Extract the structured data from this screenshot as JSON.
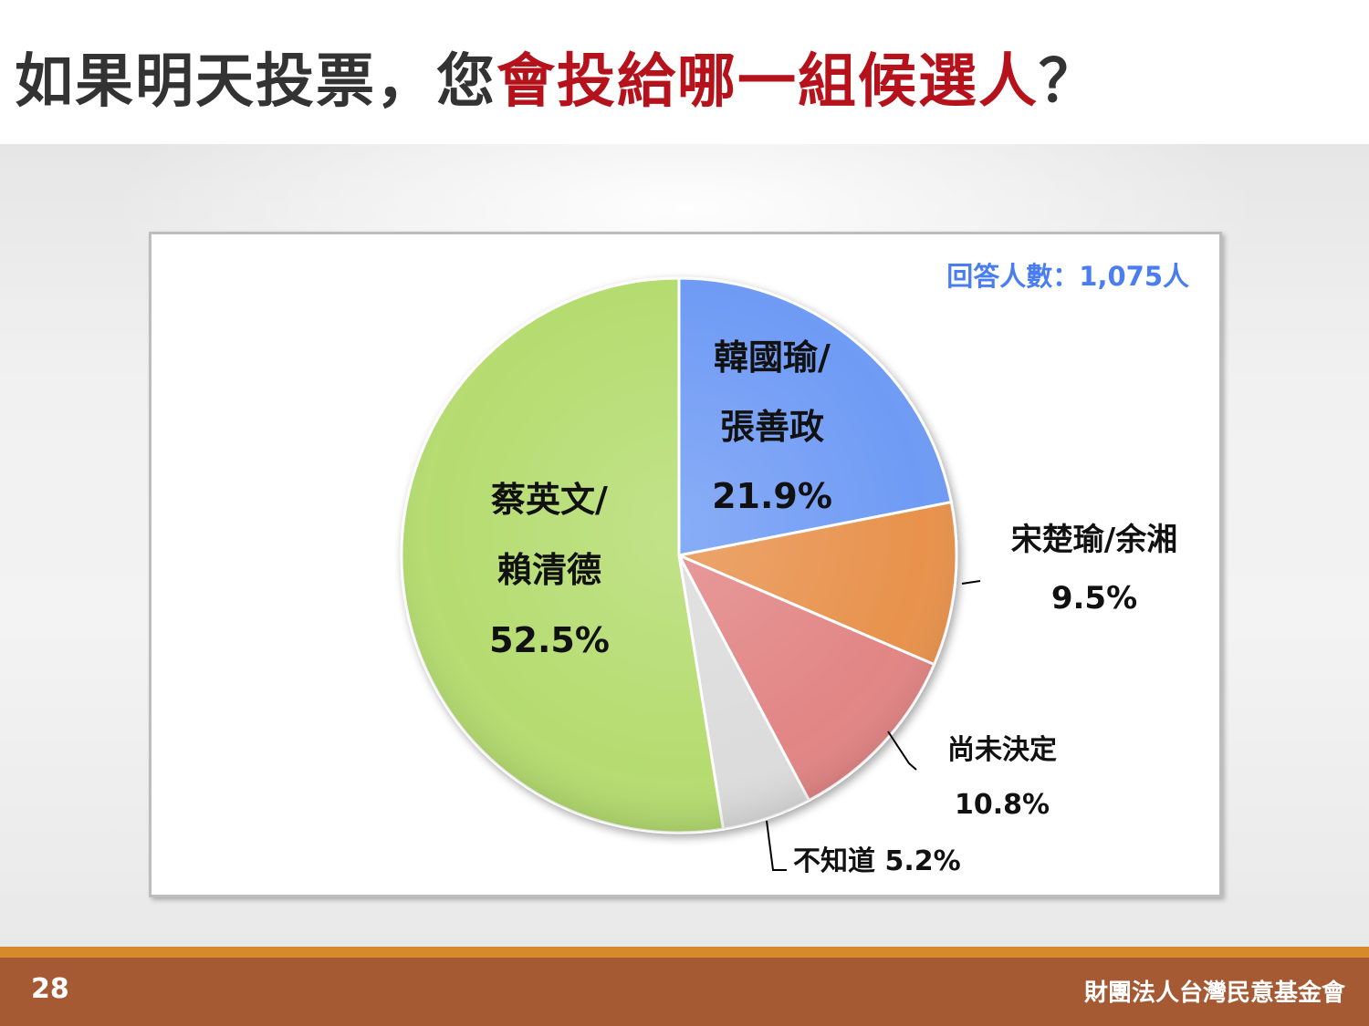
{
  "title": {
    "prefix": "如果明天投票，您",
    "highlight": "會投給哪一組候選人",
    "suffix": "？"
  },
  "footer": {
    "page_number": "28",
    "organization": "財團法人台灣民意基金會"
  },
  "chart_data": {
    "type": "pie",
    "note": "回答人數：1,075人",
    "slices": [
      {
        "label_lines": [
          "韓國瑜/",
          "張善政"
        ],
        "value": 21.9,
        "value_label": "21.9%",
        "color": "#6f9bf5"
      },
      {
        "label_lines": [
          "宋楚瑜/余湘"
        ],
        "value": 9.5,
        "value_label": "9.5%",
        "color": "#e8924d"
      },
      {
        "label_lines": [
          "尚未決定"
        ],
        "value": 10.8,
        "value_label": "10.8%",
        "color": "#e28585"
      },
      {
        "label_lines": [
          "不知道"
        ],
        "value": 5.2,
        "value_label": "5.2%",
        "color": "#dcdcdc"
      },
      {
        "label_lines": [
          "蔡英文/",
          "賴清德"
        ],
        "value": 52.5,
        "value_label": "52.5%",
        "color": "#b5dc70"
      }
    ]
  }
}
